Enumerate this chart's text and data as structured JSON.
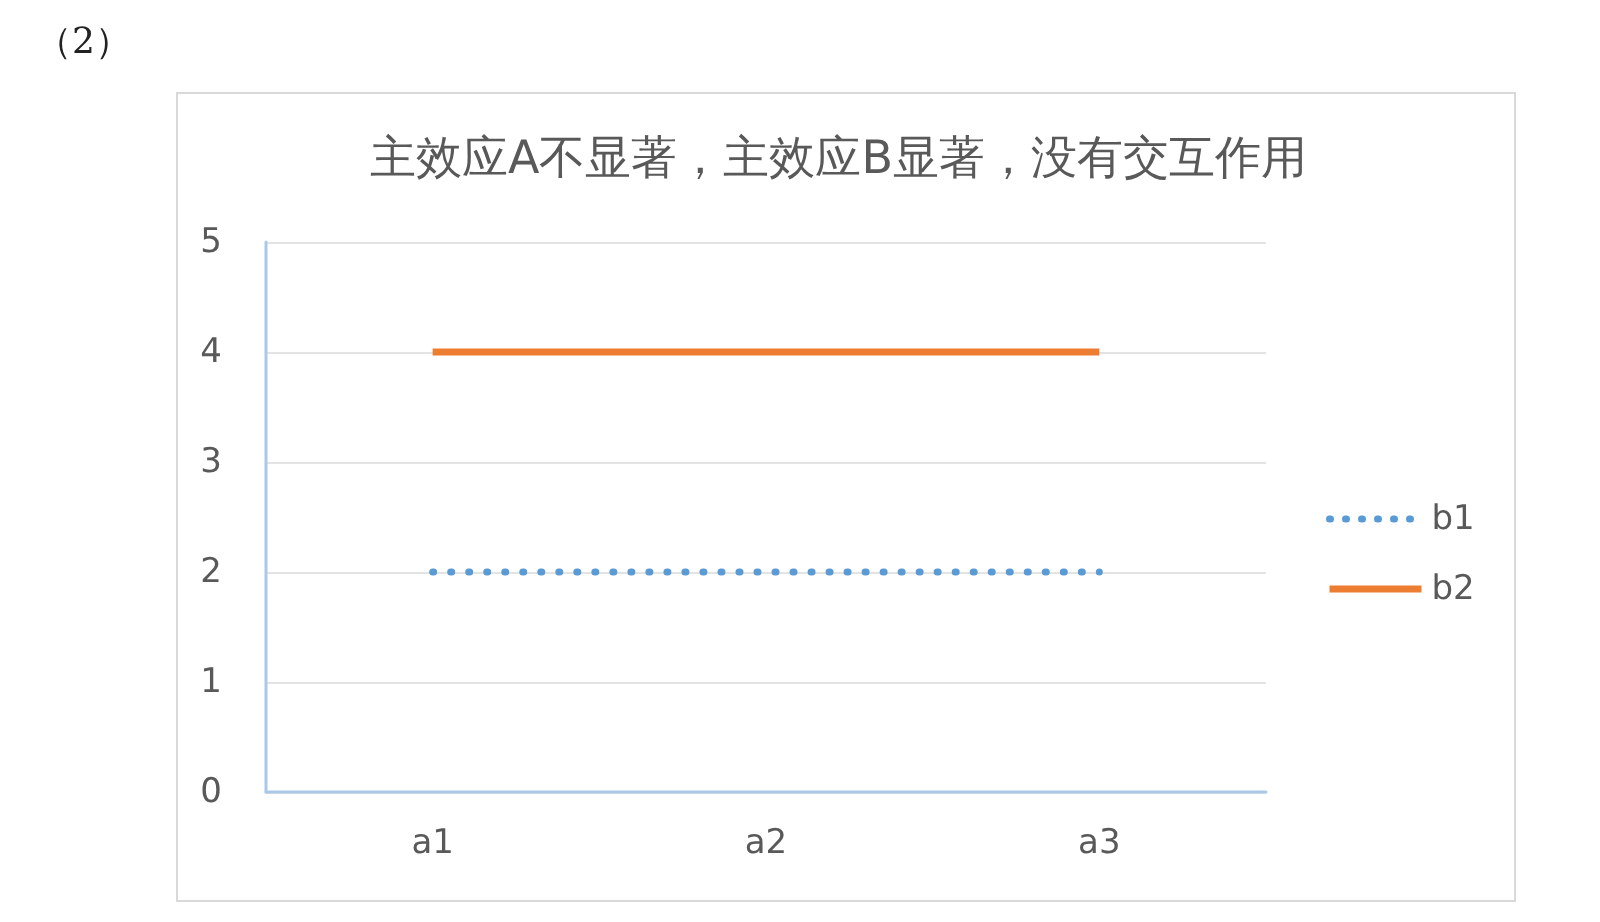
{
  "chart_data": {
    "type": "line",
    "title": "主效应A不显著，主效应B显著，没有交互作用",
    "annotations": [
      "（2）"
    ],
    "categories": [
      "a1",
      "a2",
      "a3"
    ],
    "series": [
      {
        "name": "b1",
        "color": "#5b9bd5",
        "values": [
          2,
          2,
          2
        ],
        "line_style": "dotted"
      },
      {
        "name": "b2",
        "color": "#ed7d31",
        "values": [
          4,
          4,
          4
        ],
        "line_style": "solid"
      }
    ],
    "ylim": [
      0,
      5
    ],
    "yticks": [
      0,
      1,
      2,
      3,
      4,
      5
    ],
    "grid": "y",
    "legend": "right",
    "marker": "none"
  }
}
